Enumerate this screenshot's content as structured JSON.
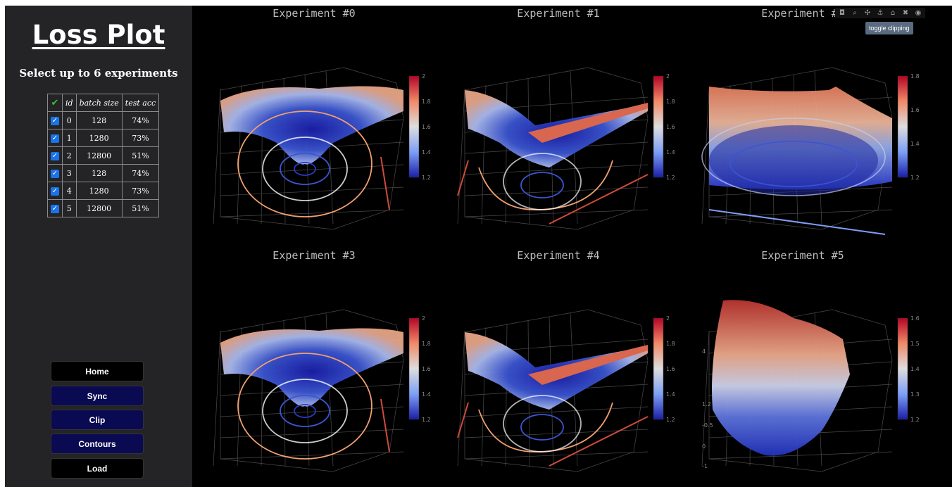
{
  "sidebar": {
    "title": "Loss Plot",
    "select_heading": "Select up to 6 experiments",
    "table": {
      "headers": [
        "✔",
        "id",
        "batch size",
        "test acc"
      ],
      "rows": [
        {
          "checked": true,
          "id": "0",
          "batch_size": "128",
          "test_acc": "74%"
        },
        {
          "checked": true,
          "id": "1",
          "batch_size": "1280",
          "test_acc": "73%"
        },
        {
          "checked": true,
          "id": "2",
          "batch_size": "12800",
          "test_acc": "51%"
        },
        {
          "checked": true,
          "id": "3",
          "batch_size": "128",
          "test_acc": "74%"
        },
        {
          "checked": true,
          "id": "4",
          "batch_size": "1280",
          "test_acc": "73%"
        },
        {
          "checked": true,
          "id": "5",
          "batch_size": "12800",
          "test_acc": "51%"
        }
      ]
    },
    "buttons": {
      "home": "Home",
      "sync": "Sync",
      "clip": "Clip",
      "contours": "Contours",
      "load": "Load"
    }
  },
  "plots": {
    "titles": [
      "Experiment #0",
      "Experiment #1",
      "Experiment #2",
      "Experiment #3",
      "Experiment #4",
      "Experiment #5"
    ],
    "colorbars": [
      [
        "2",
        "1.8",
        "1.6",
        "1.4",
        "1.2"
      ],
      [
        "2",
        "1.8",
        "1.6",
        "1.4",
        "1.2"
      ],
      [
        "1.8",
        "1.6",
        "1.4",
        "1.2"
      ],
      [
        "2",
        "1.8",
        "1.6",
        "1.4",
        "1.2"
      ],
      [
        "2",
        "1.8",
        "1.6",
        "1.4",
        "1.2"
      ],
      [
        "1.6",
        "1.5",
        "1.4",
        "1.3",
        "1.2"
      ]
    ],
    "exp5_axis_ticks": [
      "4",
      "1.2",
      "-0.5",
      "0",
      "-1"
    ]
  },
  "modebar": {
    "icons": [
      "camera-icon",
      "zoom-icon",
      "pan-icon",
      "orbit-icon",
      "home-icon",
      "clipping-icon",
      "eye-icon"
    ],
    "tooltip": "toggle clipping"
  },
  "colors": {
    "sidebar_bg": "#242426",
    "plot_bg": "#000000",
    "nav_button": "#0a0a52",
    "colorscale_high": "#b40426",
    "colorscale_mid": "#dddddd",
    "colorscale_low": "#3b4cc0"
  }
}
